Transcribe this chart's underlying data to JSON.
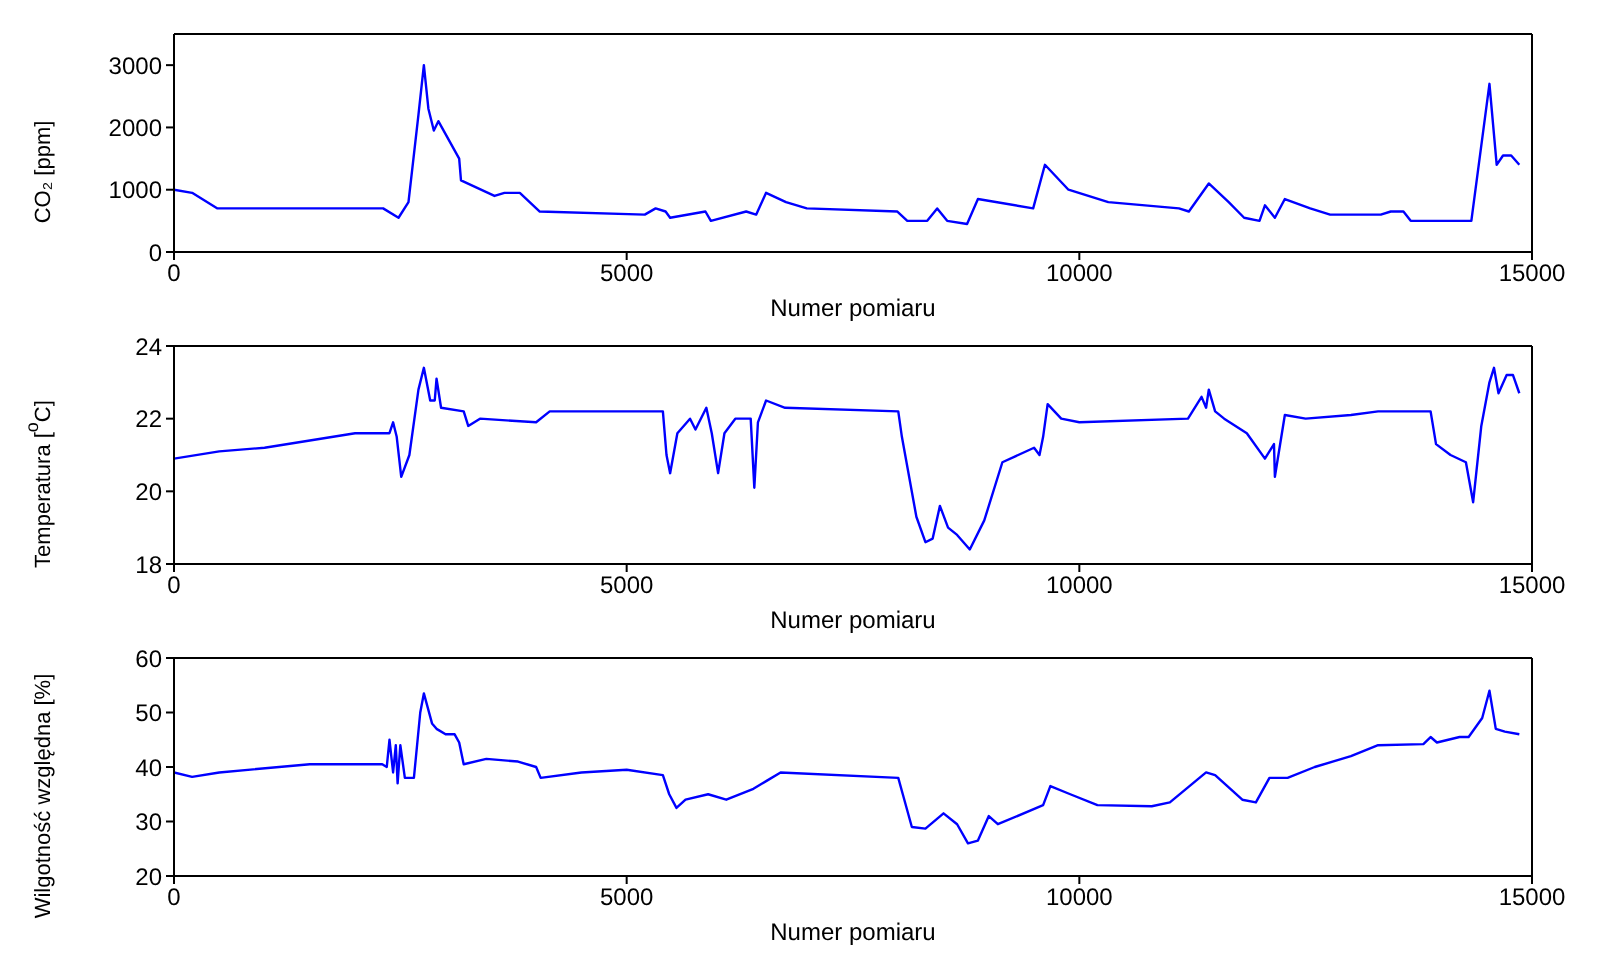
{
  "chart_data": [
    {
      "type": "line",
      "xlabel": "Numer pomiaru",
      "ylabel": "CO₂ [ppm]",
      "xlim": [
        0,
        15000
      ],
      "xticks": [
        0,
        5000,
        10000,
        15000
      ],
      "ylim": [
        0,
        3500
      ],
      "yticks": [
        0,
        1000,
        2000,
        3000
      ],
      "marker": "none",
      "line_style": "solid",
      "series": [
        {
          "color": "#0000ff",
          "x": [
            0,
            200,
            480,
            2310,
            2480,
            2590,
            2700,
            2760,
            2810,
            2870,
            2920,
            3150,
            3170,
            3540,
            3650,
            3820,
            4040,
            5200,
            5320,
            5430,
            5480,
            5870,
            5930,
            6320,
            6430,
            6540,
            6760,
            6990,
            7990,
            8100,
            8320,
            8430,
            8540,
            8760,
            8880,
            9490,
            9620,
            9880,
            10320,
            11100,
            11210,
            11430,
            11650,
            11820,
            11990,
            12050,
            12160,
            12270,
            12550,
            12770,
            13330,
            13440,
            13580,
            13660,
            14330,
            14530,
            14610,
            14680,
            14770,
            14860
          ],
          "values": [
            1000,
            950,
            700,
            700,
            550,
            800,
            2200,
            3000,
            2300,
            1950,
            2100,
            1500,
            1150,
            900,
            950,
            950,
            650,
            600,
            700,
            650,
            550,
            650,
            500,
            650,
            600,
            950,
            800,
            700,
            650,
            500,
            500,
            700,
            500,
            450,
            850,
            700,
            1400,
            1000,
            800,
            700,
            650,
            1100,
            800,
            550,
            500,
            750,
            550,
            850,
            700,
            600,
            600,
            650,
            650,
            500,
            500,
            2700,
            1400,
            1550,
            1550,
            1400
          ]
        }
      ]
    },
    {
      "type": "line",
      "xlabel": "Numer pomiaru",
      "ylabel": "Temperatura [$^{o}$C]",
      "xlim": [
        0,
        15000
      ],
      "xticks": [
        0,
        5000,
        10000,
        15000
      ],
      "ylim": [
        18,
        24
      ],
      "yticks": [
        18,
        20,
        22,
        24
      ],
      "marker": "none",
      "line_style": "solid",
      "series": [
        {
          "color": "#0000ff",
          "x": [
            0,
            500,
            1000,
            2000,
            2380,
            2420,
            2460,
            2510,
            2600,
            2700,
            2760,
            2830,
            2880,
            2900,
            2950,
            3200,
            3250,
            3380,
            4000,
            4150,
            5400,
            5440,
            5480,
            5560,
            5700,
            5760,
            5880,
            5940,
            6010,
            6080,
            6200,
            6370,
            6410,
            6450,
            6540,
            6750,
            8000,
            8040,
            8200,
            8300,
            8380,
            8460,
            8550,
            8650,
            8790,
            8950,
            9150,
            9500,
            9560,
            9600,
            9650,
            9800,
            10000,
            11200,
            11350,
            11400,
            11430,
            11500,
            11600,
            11850,
            12050,
            12150,
            12160,
            12270,
            12500,
            13000,
            13300,
            13880,
            13940,
            14100,
            14270,
            14350,
            14440,
            14530,
            14580,
            14630,
            14720,
            14790,
            14860
          ],
          "values": [
            20.9,
            21.1,
            21.2,
            21.6,
            21.6,
            21.9,
            21.5,
            20.4,
            21.0,
            22.8,
            23.4,
            22.5,
            22.5,
            23.1,
            22.3,
            22.2,
            21.8,
            22.0,
            21.9,
            22.2,
            22.2,
            21.0,
            20.5,
            21.6,
            22.0,
            21.7,
            22.3,
            21.6,
            20.5,
            21.6,
            22.0,
            22.0,
            20.1,
            21.9,
            22.5,
            22.3,
            22.2,
            21.5,
            19.3,
            18.6,
            18.7,
            19.6,
            19.0,
            18.8,
            18.4,
            19.2,
            20.8,
            21.2,
            21.0,
            21.5,
            22.4,
            22.0,
            21.9,
            22.0,
            22.6,
            22.3,
            22.8,
            22.2,
            22.0,
            21.6,
            20.9,
            21.3,
            20.4,
            22.1,
            22.0,
            22.1,
            22.2,
            22.2,
            21.3,
            21.0,
            20.8,
            19.7,
            21.8,
            23.0,
            23.4,
            22.7,
            23.2,
            23.2,
            22.7
          ]
        }
      ]
    },
    {
      "type": "line",
      "xlabel": "Numer pomiaru",
      "ylabel": "Wilgotność względna [%]",
      "xlim": [
        0,
        15000
      ],
      "xticks": [
        0,
        5000,
        10000,
        15000
      ],
      "ylim": [
        20,
        60
      ],
      "yticks": [
        20,
        30,
        40,
        50,
        60
      ],
      "marker": "none",
      "line_style": "solid",
      "series": [
        {
          "color": "#0000ff",
          "x": [
            0,
            200,
            500,
            1500,
            2300,
            2350,
            2380,
            2420,
            2450,
            2470,
            2500,
            2550,
            2650,
            2720,
            2760,
            2850,
            2900,
            3000,
            3100,
            3150,
            3200,
            3450,
            3800,
            4000,
            4050,
            4500,
            5000,
            5400,
            5470,
            5550,
            5650,
            5900,
            6100,
            6400,
            6550,
            6700,
            8000,
            8050,
            8150,
            8300,
            8500,
            8650,
            8770,
            8880,
            9000,
            9100,
            9600,
            9680,
            9900,
            10200,
            10800,
            11000,
            11400,
            11500,
            11800,
            11950,
            12100,
            12300,
            12600,
            13000,
            13300,
            13800,
            13880,
            13950,
            14200,
            14300,
            14450,
            14530,
            14600,
            14700,
            14860
          ],
          "values": [
            39,
            38.2,
            39,
            40.5,
            40.5,
            40,
            45,
            39,
            44,
            37,
            44,
            38,
            38,
            50,
            53.5,
            48,
            47,
            46,
            46,
            44.5,
            40.5,
            41.5,
            41,
            40,
            38,
            39,
            39.5,
            38.5,
            35,
            32.5,
            34,
            35,
            34,
            36,
            37.5,
            39,
            38,
            35,
            29,
            28.7,
            31.5,
            29.5,
            26,
            26.5,
            31,
            29.5,
            33,
            36.5,
            35,
            33,
            32.8,
            33.5,
            39,
            38.5,
            34,
            33.5,
            38,
            38,
            40,
            42,
            44,
            44.2,
            45.5,
            44.5,
            45.5,
            45.5,
            49,
            54,
            47,
            46.5,
            46
          ]
        }
      ]
    }
  ]
}
